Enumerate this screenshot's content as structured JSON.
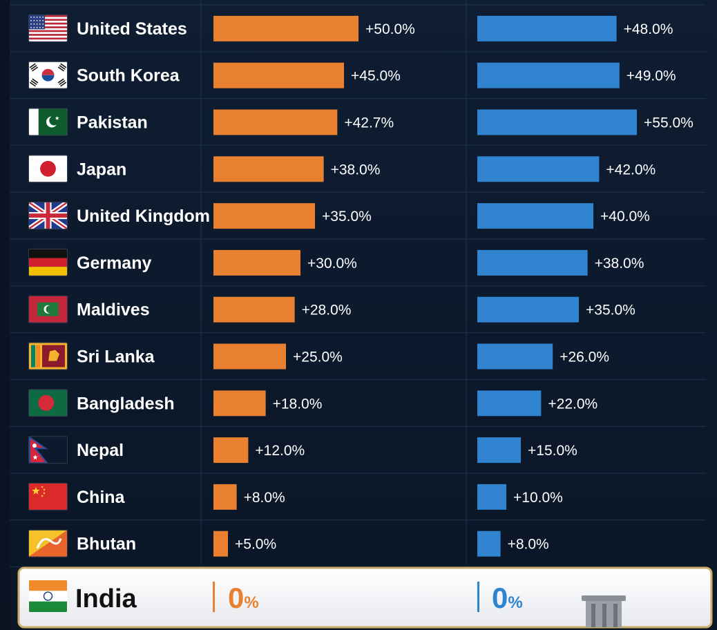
{
  "chart_data": {
    "type": "bar",
    "categories": [
      "United States",
      "South Korea",
      "Pakistan",
      "Japan",
      "United Kingdom",
      "Germany",
      "Maldives",
      "Sri Lanka",
      "Bangladesh",
      "Nepal",
      "China",
      "Bhutan"
    ],
    "series": [
      {
        "color": "#e9802f",
        "values": [
          50.0,
          45.0,
          42.7,
          38.0,
          35.0,
          30.0,
          28.0,
          25.0,
          18.0,
          12.0,
          8.0,
          5.0
        ],
        "labels": [
          "+50.0%",
          "+45.0%",
          "+42.7%",
          "+38.0%",
          "+35.0%",
          "+30.0%",
          "+28.0%",
          "+25.0%",
          "+18.0%",
          "+12.0%",
          "+8.0%",
          "+5.0%"
        ]
      },
      {
        "color": "#2f83cf",
        "values": [
          48.0,
          49.0,
          55.0,
          42.0,
          40.0,
          38.0,
          35.0,
          26.0,
          22.0,
          15.0,
          10.0,
          8.0
        ],
        "labels": [
          "+48.0%",
          "+49.0%",
          "+55.0%",
          "+42.0%",
          "+40.0%",
          "+38.0%",
          "+35.0%",
          "+26.0%",
          "+22.0%",
          "+15.0%",
          "+10.0%",
          "+8.0%"
        ]
      }
    ],
    "flags": [
      "us",
      "kr",
      "pk",
      "jp",
      "gb",
      "de",
      "mv",
      "lk",
      "bd",
      "np",
      "cn",
      "bt"
    ],
    "highlight": {
      "country": "India",
      "flag": "in",
      "series1_value": 0,
      "series2_value": 0,
      "number_text": "0",
      "unit": "%"
    }
  }
}
